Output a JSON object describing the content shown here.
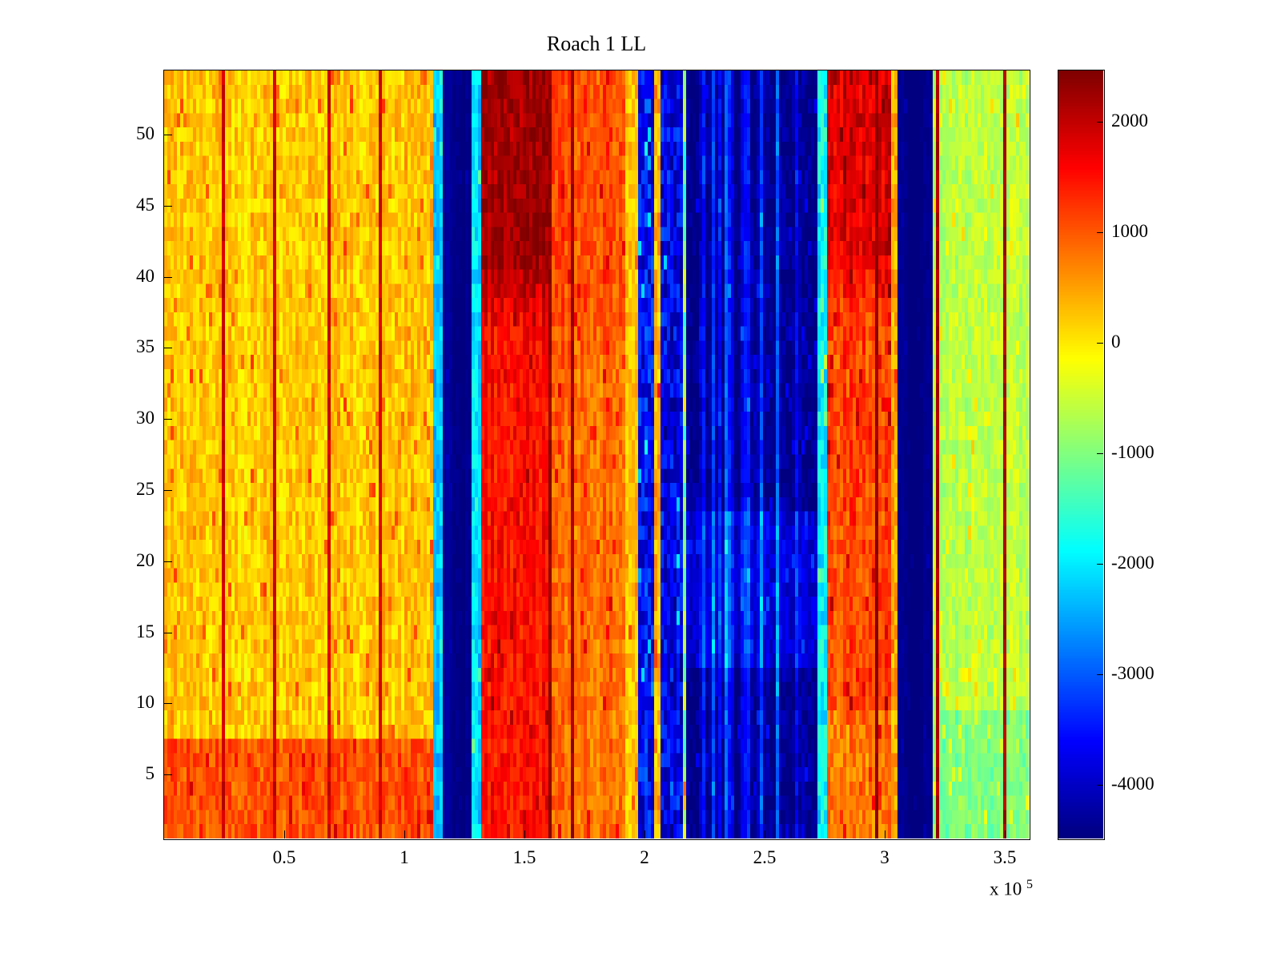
{
  "chart_data": {
    "type": "heatmap",
    "title": "Roach 1 LL",
    "colormap": "jet",
    "background_color": "#ffffff",
    "axis_color": "#000000",
    "x_axis": {
      "range": [
        0,
        3.6
      ],
      "unit_scale": "1e5",
      "ticks": [
        0.5,
        1,
        1.5,
        2,
        2.5,
        3,
        3.5
      ],
      "tick_labels": [
        "0.5",
        "1",
        "1.5",
        "2",
        "2.5",
        "3",
        "3.5"
      ],
      "multiplier_text": "x 10",
      "multiplier_exponent": "5"
    },
    "y_axis": {
      "range": [
        0.5,
        54.5
      ],
      "rows": 54,
      "ticks": [
        5,
        10,
        15,
        20,
        25,
        30,
        35,
        40,
        45,
        50
      ],
      "tick_labels": [
        "5",
        "10",
        "15",
        "20",
        "25",
        "30",
        "35",
        "40",
        "45",
        "50"
      ]
    },
    "colorbar": {
      "clim": [
        -4485,
        2465
      ],
      "ticks": [
        2000,
        1000,
        0,
        -1000,
        -2000,
        -3000,
        -4000
      ],
      "tick_labels": [
        "2000",
        "1000",
        "0",
        "-1000",
        "-2000",
        "-3000",
        "-4000"
      ]
    },
    "grid": {
      "cols": 270,
      "rows": 54,
      "seed": 42,
      "col_noise": 160,
      "cell_speckle_chance": 0.05
    },
    "bands": [
      {
        "x0": 0.0,
        "x1": 1.12,
        "base": 230,
        "noise": 340,
        "bottom_rows": 7,
        "bottom_delta": 820
      },
      {
        "x0": 1.12,
        "x1": 1.16,
        "base": -2300,
        "noise": 350
      },
      {
        "x0": 1.16,
        "x1": 1.285,
        "base": -4430,
        "noise": 90
      },
      {
        "x0": 1.285,
        "x1": 1.32,
        "base": -2100,
        "noise": 400
      },
      {
        "x0": 1.32,
        "x1": 1.62,
        "base": 1500,
        "noise": 300,
        "top_from": 37,
        "top_boost": 750
      },
      {
        "x0": 1.62,
        "x1": 1.92,
        "base": 830,
        "noise": 330,
        "top_from": 34,
        "top_boost": 250
      },
      {
        "x0": 1.92,
        "x1": 1.975,
        "base": 250,
        "noise": 330
      },
      {
        "x0": 1.975,
        "x1": 2.035,
        "base": -3600,
        "noise": 650
      },
      {
        "x0": 2.035,
        "x1": 2.065,
        "base": 350,
        "noise": 450
      },
      {
        "x0": 2.065,
        "x1": 2.155,
        "base": -3700,
        "noise": 650
      },
      {
        "x0": 2.155,
        "x1": 2.175,
        "base": -1000,
        "noise": 800
      },
      {
        "x0": 2.175,
        "x1": 2.72,
        "base": -4350,
        "noise": 300,
        "col_streaks": 1500,
        "mid_from": 13,
        "mid_to": 23,
        "mid_delta": 500
      },
      {
        "x0": 2.72,
        "x1": 2.755,
        "base": -1900,
        "noise": 500
      },
      {
        "x0": 2.755,
        "x1": 3.03,
        "base": 1150,
        "noise": 360,
        "top_from": 38,
        "top_boost": 700,
        "bottom_rows": 9,
        "bottom_delta": -350
      },
      {
        "x0": 3.03,
        "x1": 3.055,
        "base": 350,
        "noise": 350
      },
      {
        "x0": 3.055,
        "x1": 3.195,
        "base": -4430,
        "noise": 90
      },
      {
        "x0": 3.195,
        "x1": 3.6,
        "base": -640,
        "noise": 290,
        "bottom_rows": 9,
        "bottom_delta": -420
      }
    ],
    "vlines": [
      {
        "x": 0.25,
        "value": 1950
      },
      {
        "x": 0.455,
        "value": 1950
      },
      {
        "x": 0.68,
        "value": 1900
      },
      {
        "x": 0.9,
        "value": 1900
      },
      {
        "x": 1.605,
        "value": 2350
      },
      {
        "x": 1.705,
        "value": 2250
      },
      {
        "x": 2.965,
        "value": 2350
      },
      {
        "x": 3.225,
        "value": 2150
      },
      {
        "x": 3.5,
        "value": 2150
      }
    ]
  }
}
